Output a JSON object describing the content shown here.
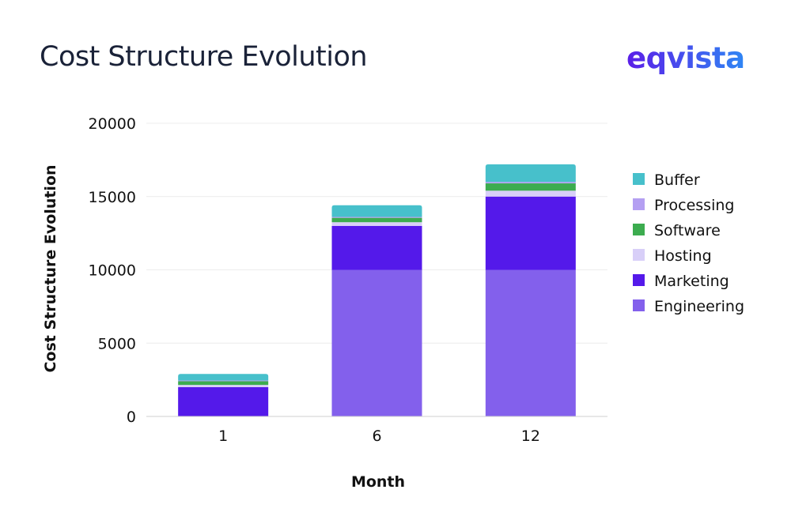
{
  "header": {
    "title": "Cost Structure Evolution",
    "logo_text": "eqvista"
  },
  "chart_data": {
    "type": "bar",
    "stacked": true,
    "title": "Cost Structure Evolution",
    "xlabel": "Month",
    "ylabel": "Cost Structure Evolution",
    "categories": [
      "1",
      "6",
      "12"
    ],
    "ylim": [
      0,
      20000
    ],
    "yticks": [
      0,
      5000,
      10000,
      15000,
      20000
    ],
    "grid": true,
    "legend_position": "right",
    "series": [
      {
        "name": "Engineering",
        "color": "#8360ec",
        "values": [
          0,
          10000,
          10000
        ]
      },
      {
        "name": "Marketing",
        "color": "#5419ea",
        "values": [
          2000,
          3000,
          5000
        ]
      },
      {
        "name": "Hosting",
        "color": "#d8cff8",
        "values": [
          150,
          250,
          400
        ]
      },
      {
        "name": "Software",
        "color": "#3cac4f",
        "values": [
          250,
          300,
          500
        ]
      },
      {
        "name": "Processing",
        "color": "#b49ff2",
        "values": [
          50,
          60,
          100
        ]
      },
      {
        "name": "Buffer",
        "color": "#47c0cb",
        "values": [
          450,
          800,
          1200
        ]
      }
    ]
  }
}
